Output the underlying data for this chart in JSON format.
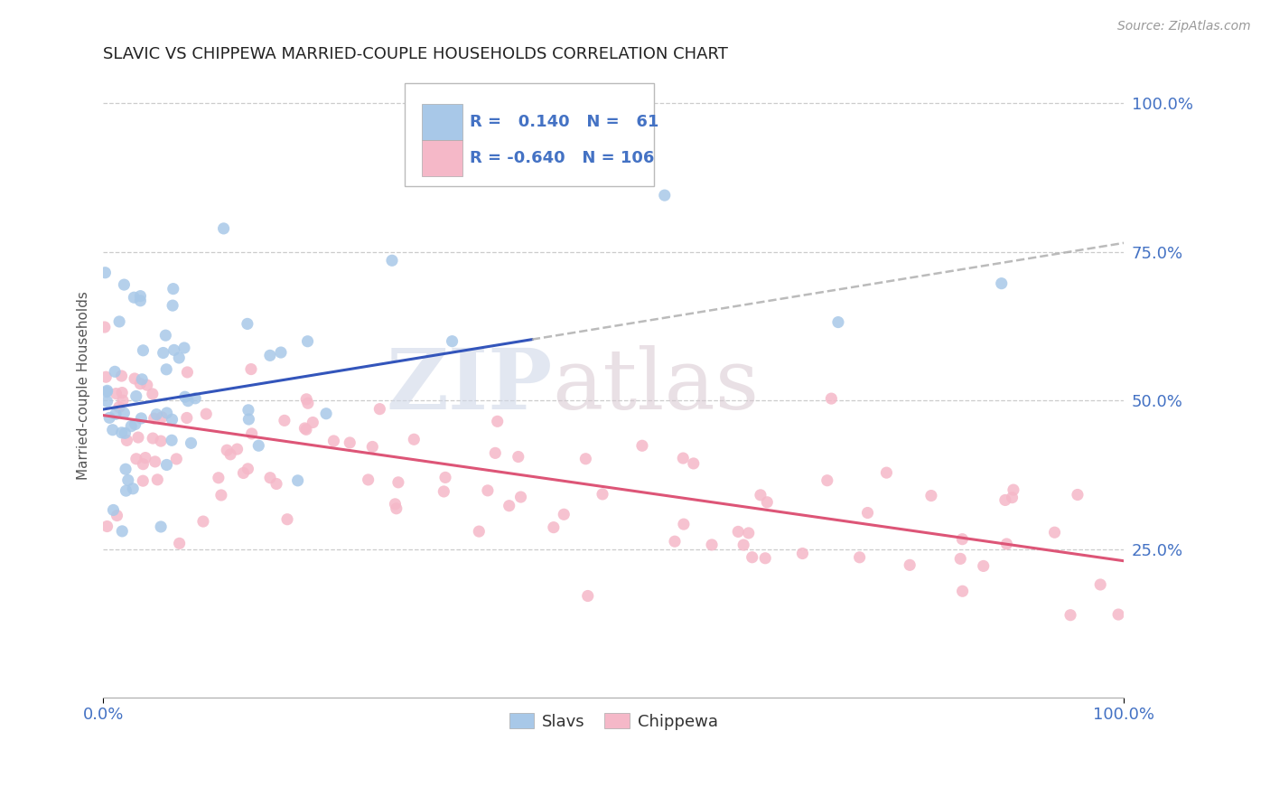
{
  "title": "SLAVIC VS CHIPPEWA MARRIED-COUPLE HOUSEHOLDS CORRELATION CHART",
  "source": "Source: ZipAtlas.com",
  "ylabel": "Married-couple Households",
  "x_tick_labels": [
    "0.0%",
    "100.0%"
  ],
  "y_tick_labels": [
    "100.0%",
    "75.0%",
    "50.0%",
    "25.0%"
  ],
  "y_tick_positions": [
    1.0,
    0.75,
    0.5,
    0.25
  ],
  "xlim": [
    0.0,
    1.0
  ],
  "ylim": [
    0.0,
    1.05
  ],
  "legend_entries": [
    "Slavs",
    "Chippewa"
  ],
  "slavic_color": "#a8c8e8",
  "chippewa_color": "#f5b8c8",
  "slavic_line_color": "#3355bb",
  "chippewa_line_color": "#dd5577",
  "slavic_R": 0.14,
  "slavic_N": 61,
  "chippewa_R": -0.64,
  "chippewa_N": 106,
  "watermark_zip": "ZIP",
  "watermark_atlas": "atlas",
  "background_color": "#ffffff",
  "grid_color": "#cccccc",
  "title_color": "#222222",
  "axis_label_color": "#4472c4",
  "slavic_intercept": 0.485,
  "slavic_slope": 0.28,
  "chippewa_intercept": 0.475,
  "chippewa_slope": -0.245
}
